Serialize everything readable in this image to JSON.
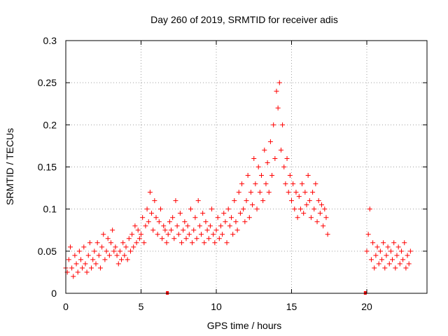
{
  "chart_data": {
    "type": "scatter",
    "title": "Day 260 of 2019, SRMTID for receiver adis",
    "xlabel": "GPS time / hours",
    "ylabel": "SRMTID / TECUs",
    "xlim": [
      0,
      24
    ],
    "ylim": [
      0,
      0.3
    ],
    "xticks": [
      "0",
      "5",
      "10",
      "15",
      "20"
    ],
    "yticks": [
      "0",
      "0.05",
      "0.1",
      "0.15",
      "0.2",
      "0.25",
      "0.3"
    ],
    "grid": true,
    "marker": "+",
    "color": "#ff0000",
    "gap_markers_x": [
      6.75,
      19.9
    ],
    "points": [
      [
        0.0,
        0.03
      ],
      [
        0.1,
        0.025
      ],
      [
        0.2,
        0.04
      ],
      [
        0.3,
        0.055
      ],
      [
        0.4,
        0.03
      ],
      [
        0.5,
        0.02
      ],
      [
        0.6,
        0.045
      ],
      [
        0.7,
        0.035
      ],
      [
        0.8,
        0.025
      ],
      [
        0.9,
        0.05
      ],
      [
        1.0,
        0.04
      ],
      [
        1.1,
        0.03
      ],
      [
        1.2,
        0.055
      ],
      [
        1.3,
        0.035
      ],
      [
        1.4,
        0.025
      ],
      [
        1.5,
        0.045
      ],
      [
        1.6,
        0.06
      ],
      [
        1.7,
        0.03
      ],
      [
        1.8,
        0.04
      ],
      [
        1.9,
        0.05
      ],
      [
        2.0,
        0.035
      ],
      [
        2.1,
        0.06
      ],
      [
        2.2,
        0.045
      ],
      [
        2.3,
        0.03
      ],
      [
        2.4,
        0.055
      ],
      [
        2.5,
        0.07
      ],
      [
        2.6,
        0.04
      ],
      [
        2.7,
        0.05
      ],
      [
        2.8,
        0.065
      ],
      [
        2.9,
        0.045
      ],
      [
        3.0,
        0.06
      ],
      [
        3.1,
        0.075
      ],
      [
        3.2,
        0.05
      ],
      [
        3.3,
        0.055
      ],
      [
        3.4,
        0.045
      ],
      [
        3.5,
        0.035
      ],
      [
        3.6,
        0.05
      ],
      [
        3.7,
        0.04
      ],
      [
        3.8,
        0.06
      ],
      [
        3.9,
        0.045
      ],
      [
        4.0,
        0.055
      ],
      [
        4.1,
        0.04
      ],
      [
        4.2,
        0.065
      ],
      [
        4.3,
        0.05
      ],
      [
        4.4,
        0.07
      ],
      [
        4.5,
        0.055
      ],
      [
        4.6,
        0.08
      ],
      [
        4.7,
        0.06
      ],
      [
        4.8,
        0.075
      ],
      [
        4.9,
        0.065
      ],
      [
        5.0,
        0.07
      ],
      [
        5.1,
        0.09
      ],
      [
        5.2,
        0.06
      ],
      [
        5.3,
        0.08
      ],
      [
        5.4,
        0.1
      ],
      [
        5.5,
        0.085
      ],
      [
        5.6,
        0.12
      ],
      [
        5.7,
        0.095
      ],
      [
        5.8,
        0.075
      ],
      [
        5.9,
        0.11
      ],
      [
        6.0,
        0.09
      ],
      [
        6.1,
        0.07
      ],
      [
        6.2,
        0.085
      ],
      [
        6.3,
        0.1
      ],
      [
        6.4,
        0.065
      ],
      [
        6.5,
        0.08
      ],
      [
        6.6,
        0.075
      ],
      [
        6.7,
        0.06
      ],
      [
        6.8,
        0.07
      ],
      [
        6.9,
        0.085
      ],
      [
        7.0,
        0.075
      ],
      [
        7.1,
        0.09
      ],
      [
        7.2,
        0.065
      ],
      [
        7.3,
        0.11
      ],
      [
        7.4,
        0.08
      ],
      [
        7.5,
        0.07
      ],
      [
        7.6,
        0.095
      ],
      [
        7.7,
        0.06
      ],
      [
        7.8,
        0.075
      ],
      [
        7.9,
        0.085
      ],
      [
        8.0,
        0.065
      ],
      [
        8.1,
        0.08
      ],
      [
        8.2,
        0.07
      ],
      [
        8.3,
        0.1
      ],
      [
        8.4,
        0.06
      ],
      [
        8.5,
        0.075
      ],
      [
        8.6,
        0.09
      ],
      [
        8.7,
        0.065
      ],
      [
        8.8,
        0.11
      ],
      [
        8.9,
        0.08
      ],
      [
        9.0,
        0.07
      ],
      [
        9.1,
        0.095
      ],
      [
        9.2,
        0.06
      ],
      [
        9.3,
        0.085
      ],
      [
        9.4,
        0.075
      ],
      [
        9.5,
        0.065
      ],
      [
        9.6,
        0.08
      ],
      [
        9.7,
        0.1
      ],
      [
        9.8,
        0.07
      ],
      [
        9.9,
        0.06
      ],
      [
        10.0,
        0.075
      ],
      [
        10.1,
        0.09
      ],
      [
        10.2,
        0.065
      ],
      [
        10.3,
        0.08
      ],
      [
        10.4,
        0.07
      ],
      [
        10.5,
        0.095
      ],
      [
        10.6,
        0.085
      ],
      [
        10.7,
        0.06
      ],
      [
        10.8,
        0.1
      ],
      [
        10.9,
        0.08
      ],
      [
        11.0,
        0.09
      ],
      [
        11.1,
        0.07
      ],
      [
        11.2,
        0.11
      ],
      [
        11.3,
        0.085
      ],
      [
        11.4,
        0.075
      ],
      [
        11.5,
        0.12
      ],
      [
        11.6,
        0.095
      ],
      [
        11.7,
        0.13
      ],
      [
        11.8,
        0.1
      ],
      [
        11.9,
        0.085
      ],
      [
        12.0,
        0.11
      ],
      [
        12.1,
        0.14
      ],
      [
        12.2,
        0.09
      ],
      [
        12.3,
        0.12
      ],
      [
        12.4,
        0.105
      ],
      [
        12.5,
        0.16
      ],
      [
        12.6,
        0.13
      ],
      [
        12.7,
        0.1
      ],
      [
        12.8,
        0.15
      ],
      [
        12.9,
        0.12
      ],
      [
        13.0,
        0.14
      ],
      [
        13.1,
        0.11
      ],
      [
        13.2,
        0.17
      ],
      [
        13.3,
        0.13
      ],
      [
        13.4,
        0.155
      ],
      [
        13.5,
        0.12
      ],
      [
        13.6,
        0.18
      ],
      [
        13.7,
        0.14
      ],
      [
        13.8,
        0.2
      ],
      [
        13.9,
        0.16
      ],
      [
        14.0,
        0.24
      ],
      [
        14.1,
        0.22
      ],
      [
        14.2,
        0.25
      ],
      [
        14.3,
        0.17
      ],
      [
        14.4,
        0.2
      ],
      [
        14.5,
        0.15
      ],
      [
        14.6,
        0.13
      ],
      [
        14.7,
        0.16
      ],
      [
        14.8,
        0.12
      ],
      [
        14.9,
        0.14
      ],
      [
        15.0,
        0.11
      ],
      [
        15.1,
        0.13
      ],
      [
        15.2,
        0.1
      ],
      [
        15.3,
        0.12
      ],
      [
        15.4,
        0.09
      ],
      [
        15.5,
        0.115
      ],
      [
        15.6,
        0.1
      ],
      [
        15.7,
        0.13
      ],
      [
        15.8,
        0.095
      ],
      [
        15.9,
        0.12
      ],
      [
        16.0,
        0.105
      ],
      [
        16.1,
        0.14
      ],
      [
        16.2,
        0.11
      ],
      [
        16.3,
        0.09
      ],
      [
        16.4,
        0.12
      ],
      [
        16.5,
        0.1
      ],
      [
        16.6,
        0.13
      ],
      [
        16.7,
        0.085
      ],
      [
        16.8,
        0.11
      ],
      [
        16.9,
        0.095
      ],
      [
        17.0,
        0.105
      ],
      [
        17.1,
        0.08
      ],
      [
        17.2,
        0.1
      ],
      [
        17.3,
        0.09
      ],
      [
        17.4,
        0.07
      ],
      [
        20.0,
        0.05
      ],
      [
        20.1,
        0.07
      ],
      [
        20.2,
        0.1
      ],
      [
        20.3,
        0.04
      ],
      [
        20.4,
        0.06
      ],
      [
        20.5,
        0.03
      ],
      [
        20.6,
        0.045
      ],
      [
        20.7,
        0.055
      ],
      [
        20.8,
        0.035
      ],
      [
        20.9,
        0.05
      ],
      [
        21.0,
        0.04
      ],
      [
        21.1,
        0.06
      ],
      [
        21.2,
        0.03
      ],
      [
        21.3,
        0.045
      ],
      [
        21.4,
        0.055
      ],
      [
        21.5,
        0.035
      ],
      [
        21.6,
        0.05
      ],
      [
        21.7,
        0.04
      ],
      [
        21.8,
        0.06
      ],
      [
        21.9,
        0.03
      ],
      [
        22.0,
        0.045
      ],
      [
        22.1,
        0.055
      ],
      [
        22.2,
        0.035
      ],
      [
        22.3,
        0.05
      ],
      [
        22.4,
        0.04
      ],
      [
        22.5,
        0.06
      ],
      [
        22.6,
        0.03
      ],
      [
        22.7,
        0.045
      ],
      [
        22.8,
        0.035
      ],
      [
        22.9,
        0.05
      ]
    ]
  }
}
